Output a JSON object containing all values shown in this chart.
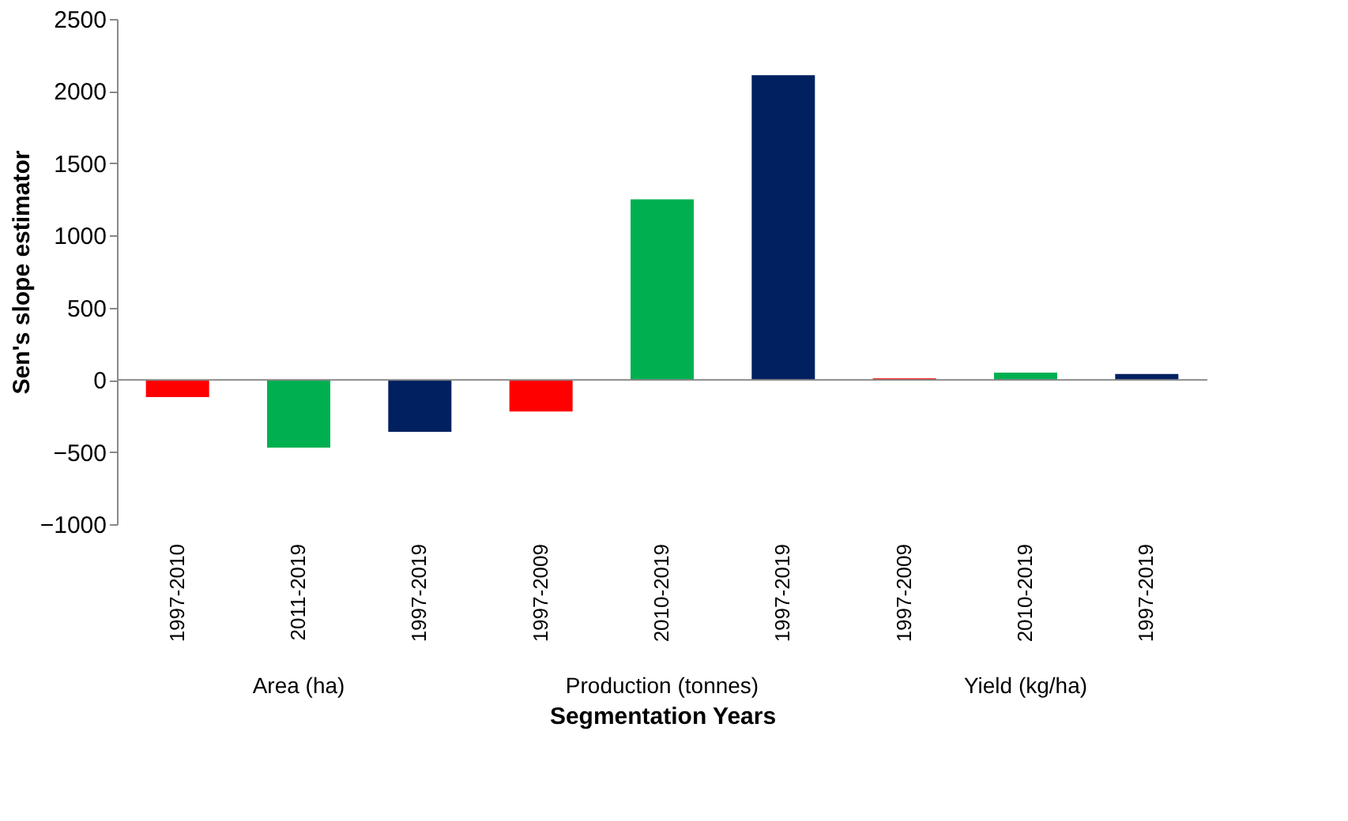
{
  "chart_data": {
    "type": "bar",
    "xlabel": "Segmentation Years",
    "ylabel": "Sen's slope estimator",
    "categories": [
      "1997-2010",
      "2011-2019",
      "1997-2019",
      "1997-2009",
      "2010-2019",
      "1997-2019",
      "1997-2009",
      "2010-2019",
      "1997-2019"
    ],
    "values": [
      -120,
      -470,
      -360,
      -220,
      1250,
      2110,
      10,
      50,
      40
    ],
    "colors": [
      "#ff0000",
      "#00b050",
      "#002060",
      "#ff0000",
      "#00b050",
      "#002060",
      "#ff0000",
      "#00b050",
      "#002060"
    ],
    "annotations": [
      "Area (ha)",
      "Production (tonnes)",
      "Yield (kg/ha)"
    ],
    "ylim": [
      -1000,
      2500
    ],
    "yticks": [
      -1000,
      -500,
      0,
      500,
      1000,
      1500,
      2000,
      2500
    ]
  }
}
